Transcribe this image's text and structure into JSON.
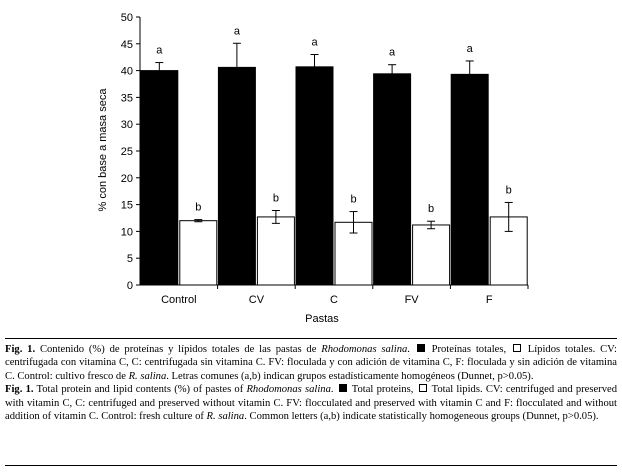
{
  "chart_data": {
    "type": "bar",
    "title": "",
    "ylabel": "% con base a masa seca",
    "xlabel": "Pastas",
    "ylim": [
      0,
      50
    ],
    "yticks": [
      0,
      5,
      10,
      15,
      20,
      25,
      30,
      35,
      40,
      45,
      50
    ],
    "categories": [
      "Control",
      "CV",
      "C",
      "FV",
      "F"
    ],
    "grid": false,
    "legend": "none",
    "series": [
      {
        "color": "#000000",
        "values": [
          40.0,
          40.6,
          40.7,
          39.4,
          39.3
        ],
        "errors": [
          1.5,
          4.5,
          2.3,
          1.7,
          2.5
        ],
        "labels": [
          "a",
          "a",
          "a",
          "a",
          "a"
        ]
      },
      {
        "color": "#ffffff",
        "values": [
          12.0,
          12.7,
          11.7,
          11.2,
          12.7
        ],
        "errors": [
          0.2,
          1.2,
          2.0,
          0.7,
          2.7
        ],
        "labels": [
          "b",
          "b",
          "b",
          "b",
          "b"
        ]
      }
    ]
  },
  "caption": {
    "es": {
      "label": "Fig. 1.",
      "t1": " Contenido (%) de proteínas y lípidos totales de las pastas de ",
      "species": "Rhodomonas salina",
      "t2": ". ",
      "leg1": " Proteínas totales, ",
      "leg2": " Lípidos totales. CV: centrifugada con vitamina C, C: centrifugada sin vitamina C. FV: floculada y con adición de vitamina C, F: floculada y sin adición de vitamina C. Control: cultivo fresco de ",
      "species2": "R. salina",
      "t3": ". Letras comunes (a,b) indican grupos estadísticamente homogéneos (Dunnet, p>0.05)."
    },
    "en": {
      "label": "Fig. 1.",
      "t1": " Total protein and lipid contents (%) of pastes of ",
      "species": "Rhodomonas salina",
      "t2": ". ",
      "leg1": " Total proteins, ",
      "leg2": " Total lipids. CV: centrifuged and preserved with vitamin C, C: centrifuged and preserved without vitamin C. FV: flocculated and preserved with vitamin C and F: flocculated and without addition of vitamin C. Control: fresh culture of ",
      "species2": "R. salina",
      "t3": ". Common letters (a,b) indicate statistically homogeneous groups (Dunnet, p>0.05)."
    }
  }
}
